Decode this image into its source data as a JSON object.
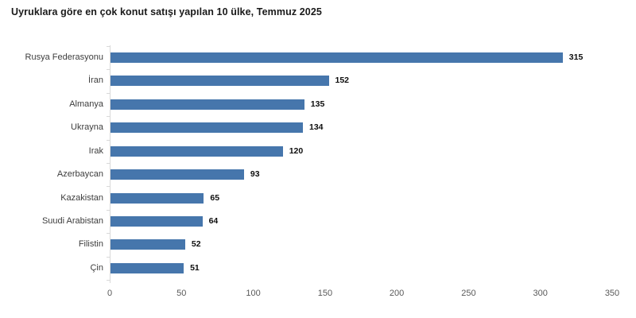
{
  "title": "Uyruklara göre en çok konut satışı yapılan 10 ülke, Temmuz 2025",
  "colors": {
    "bar": "#4676ac",
    "axis_line": "#d9d9d9",
    "tick_label": "#595959",
    "category_label": "#3d3d3d",
    "value_label": "#0d0d0d",
    "title": "#1a1a1a",
    "background": "#ffffff"
  },
  "chart_data": {
    "type": "bar",
    "orientation": "horizontal",
    "title": "Uyruklara göre en çok konut satışı yapılan 10 ülke, Temmuz 2025",
    "categories": [
      "Rusya Federasyonu",
      "İran",
      "Almanya",
      "Ukrayna",
      "Irak",
      "Azerbaycan",
      "Kazakistan",
      "Suudi Arabistan",
      "Filistin",
      "Çin"
    ],
    "values": [
      315,
      152,
      135,
      134,
      120,
      93,
      65,
      64,
      52,
      51
    ],
    "xlabel": "",
    "ylabel": "",
    "xlim": [
      0,
      350
    ],
    "x_ticks": [
      0,
      50,
      100,
      150,
      200,
      250,
      300,
      350
    ],
    "grid": false,
    "legend": false,
    "value_labels": true
  }
}
